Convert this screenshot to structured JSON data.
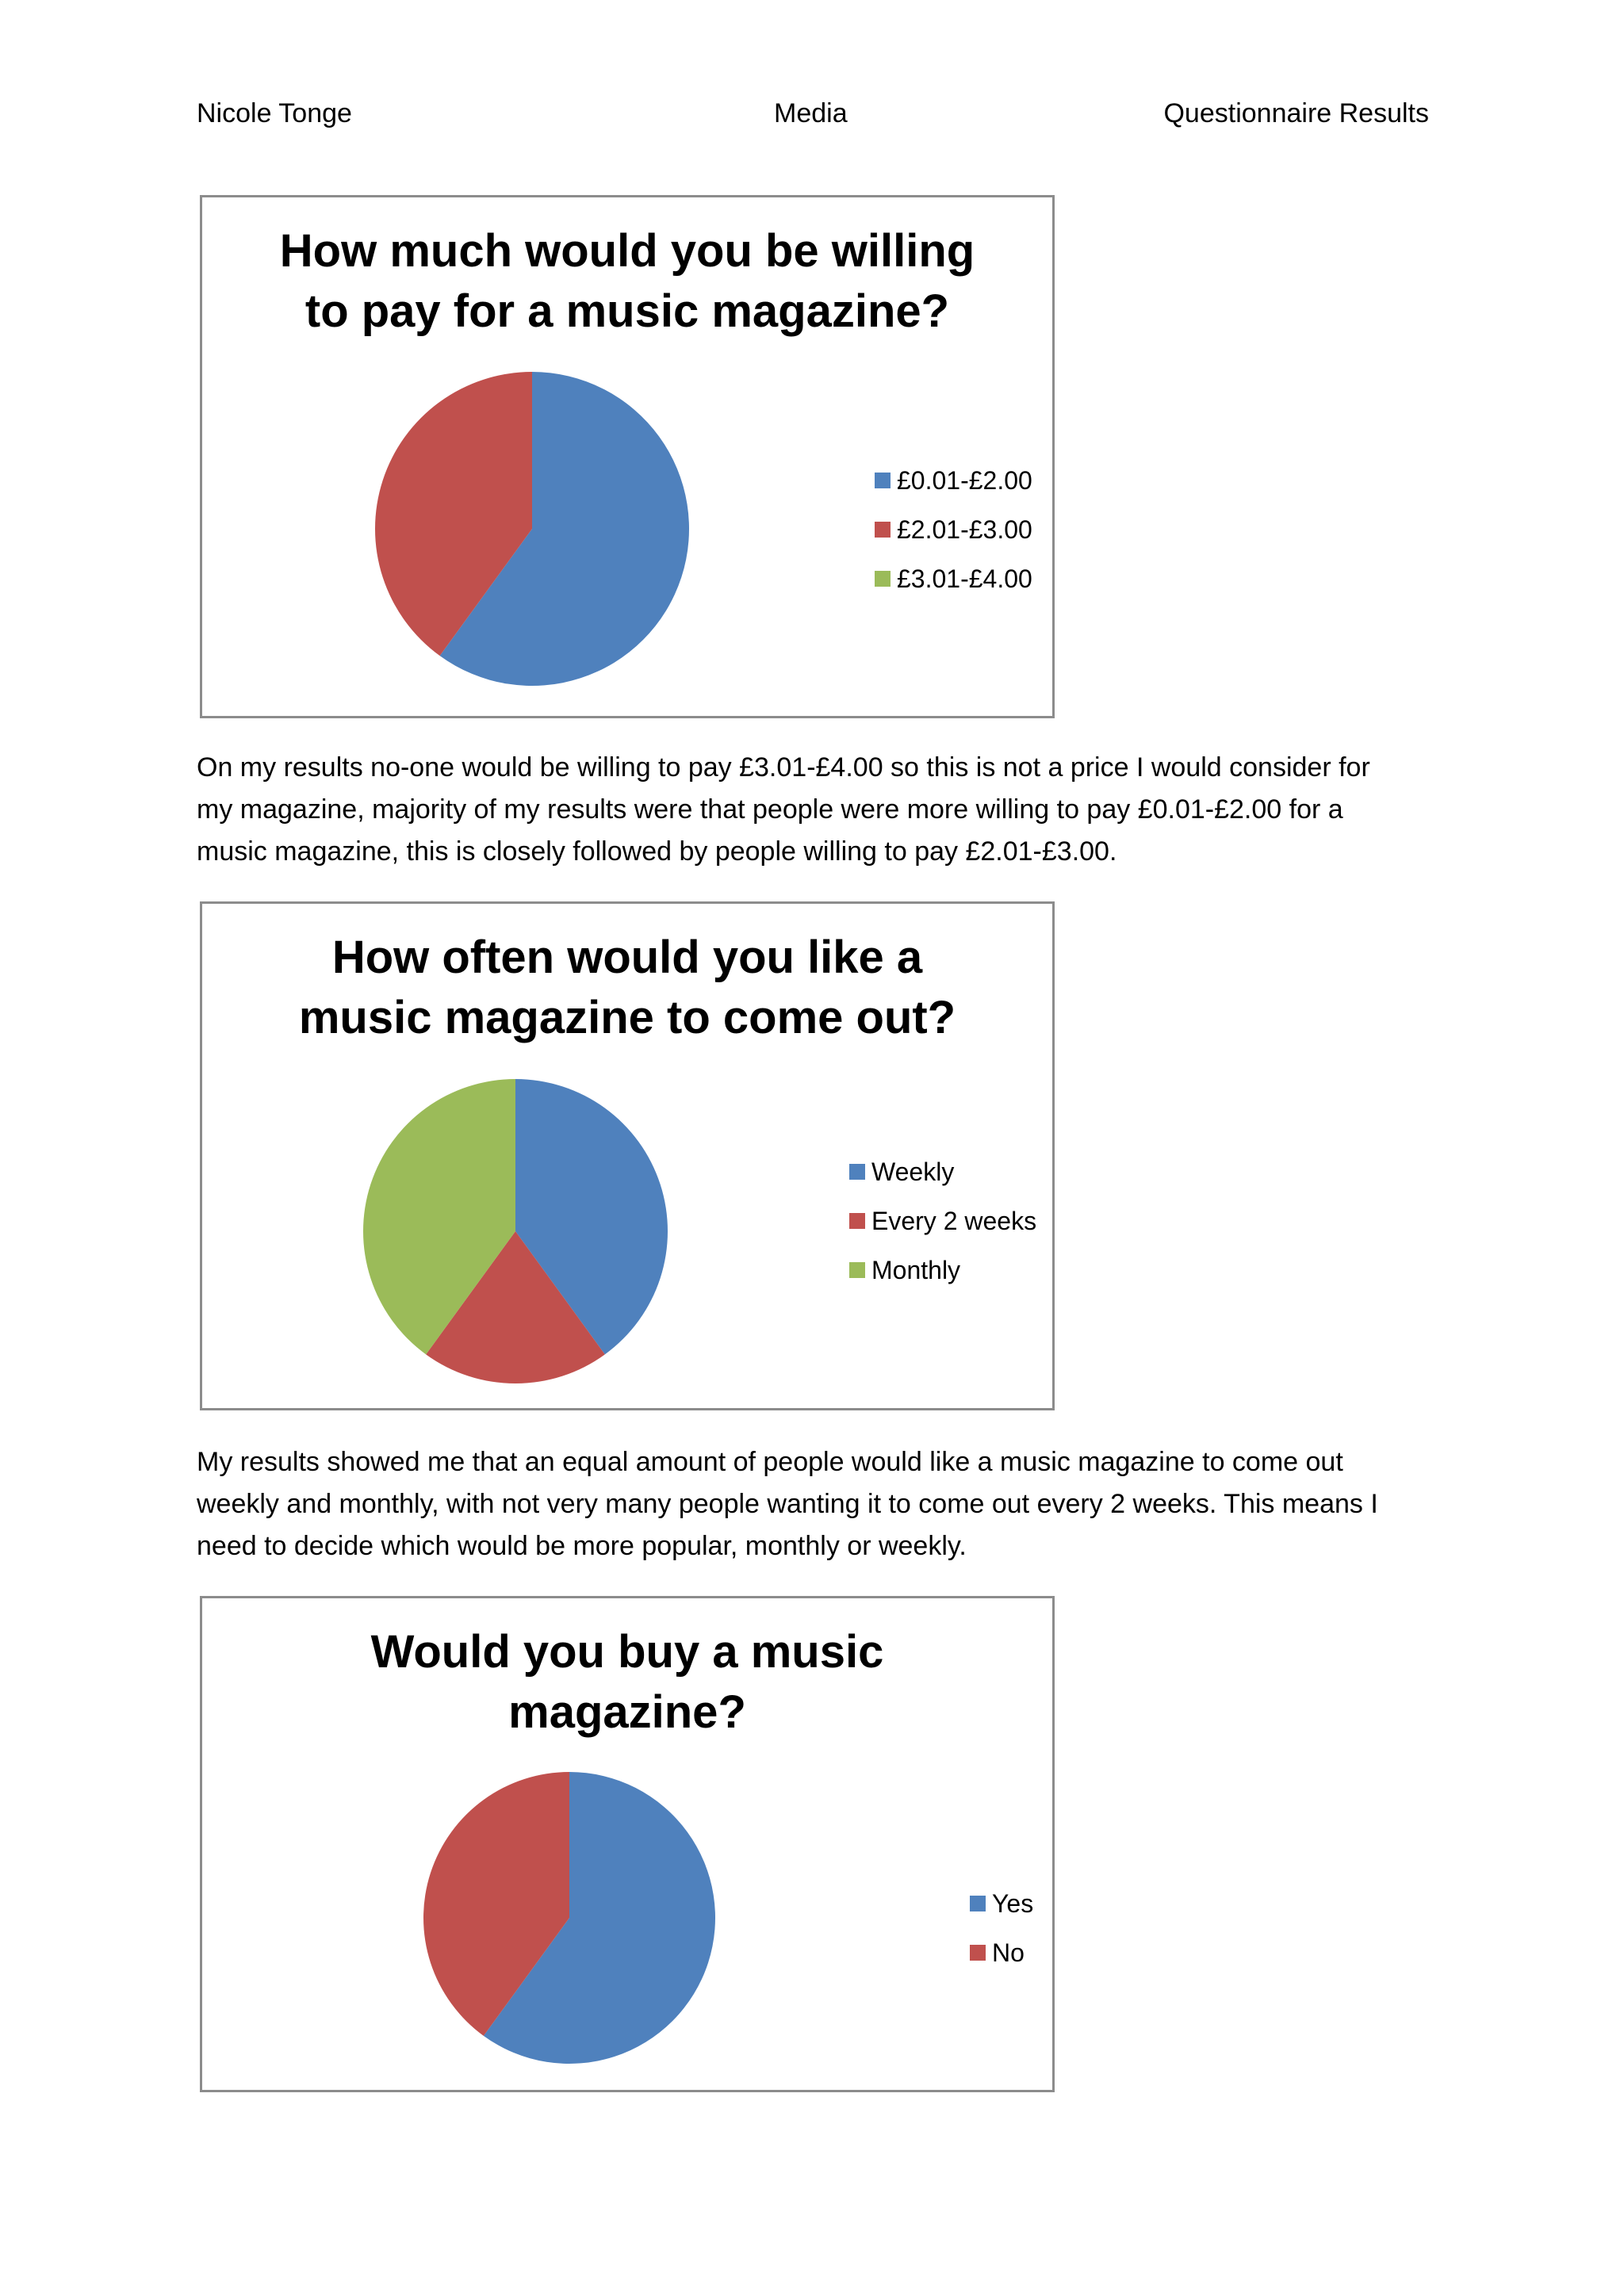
{
  "header": {
    "author": "Nicole Tonge",
    "subject": "Media",
    "doc_title": "Questionnaire Results"
  },
  "colors": {
    "blue": "#4f81bd",
    "red": "#c0504d",
    "green": "#9bbb59",
    "border": "#8c8c8c"
  },
  "chart_data": [
    {
      "type": "pie",
      "title_lines": [
        "How much would you be willing",
        "to pay for a music magazine?"
      ],
      "categories": [
        "£0.01-£2.00",
        "£2.01-£3.00",
        "£3.01-£4.00"
      ],
      "values": [
        60,
        40,
        0
      ],
      "colors": [
        "#4f81bd",
        "#c0504d",
        "#9bbb59"
      ],
      "legend_position": "right"
    },
    {
      "type": "pie",
      "title_lines": [
        "How often would you like a",
        "music magazine to come out?"
      ],
      "categories": [
        "Weekly",
        "Every 2 weeks",
        "Monthly"
      ],
      "values": [
        40,
        20,
        40
      ],
      "colors": [
        "#4f81bd",
        "#c0504d",
        "#9bbb59"
      ],
      "legend_position": "right"
    },
    {
      "type": "pie",
      "title_lines": [
        "Would you buy a music",
        "magazine?"
      ],
      "categories": [
        "Yes",
        "No"
      ],
      "values": [
        60,
        40
      ],
      "colors": [
        "#4f81bd",
        "#c0504d"
      ],
      "legend_position": "right"
    }
  ],
  "paragraphs": [
    [
      "On my results no-one would be willing to pay £3.01-£4.00 so this is not a price I would consider for",
      "my magazine, majority of my results were that people were more willing to pay £0.01-£2.00 for a",
      "music magazine, this is closely followed by people willing to pay £2.01-£3.00."
    ],
    [
      "My results showed me that an equal amount of people would like a music magazine to come out",
      "weekly and monthly, with not very many people wanting it to come out every 2 weeks.  This means I",
      "need to decide which would be more popular, monthly or weekly."
    ]
  ]
}
